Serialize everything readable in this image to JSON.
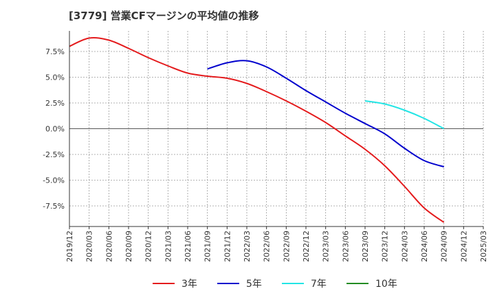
{
  "chart_data": {
    "type": "line",
    "title": "[3779]  営業CFマージンの平均値の推移",
    "xlabel": "",
    "ylabel": "",
    "ylim": [
      -9.5,
      9.5
    ],
    "y_ticks": [
      7.5,
      5.0,
      2.5,
      0.0,
      -2.5,
      -5.0,
      -7.5
    ],
    "y_tick_labels": [
      "7.5%",
      "5.0%",
      "2.5%",
      "0.0%",
      "-2.5%",
      "-5.0%",
      "-7.5%"
    ],
    "x_tick_labels": [
      "2019/12",
      "2020/03",
      "2020/06",
      "2020/09",
      "2020/12",
      "2021/03",
      "2021/06",
      "2021/09",
      "2021/12",
      "2022/03",
      "2022/06",
      "2022/09",
      "2022/12",
      "2023/03",
      "2023/06",
      "2023/09",
      "2023/12",
      "2024/03",
      "2024/06",
      "2024/09",
      "2024/12",
      "2025/03"
    ],
    "grid": true,
    "legend_position": "bottom",
    "series": [
      {
        "name": "3年",
        "color": "#e41a1c",
        "points": [
          [
            "2019/12",
            8.0
          ],
          [
            "2020/03",
            8.8
          ],
          [
            "2020/06",
            8.6
          ],
          [
            "2020/09",
            7.8
          ],
          [
            "2020/12",
            6.9
          ],
          [
            "2021/03",
            6.1
          ],
          [
            "2021/06",
            5.4
          ],
          [
            "2021/09",
            5.1
          ],
          [
            "2021/12",
            4.9
          ],
          [
            "2022/03",
            4.4
          ],
          [
            "2022/06",
            3.6
          ],
          [
            "2022/09",
            2.7
          ],
          [
            "2022/12",
            1.7
          ],
          [
            "2023/03",
            0.6
          ],
          [
            "2023/06",
            -0.7
          ],
          [
            "2023/09",
            -2.0
          ],
          [
            "2023/12",
            -3.6
          ],
          [
            "2024/03",
            -5.6
          ],
          [
            "2024/06",
            -7.7
          ],
          [
            "2024/09",
            -9.1
          ]
        ]
      },
      {
        "name": "5年",
        "color": "#0000cd",
        "points": [
          [
            "2021/09",
            5.8
          ],
          [
            "2021/12",
            6.4
          ],
          [
            "2022/03",
            6.6
          ],
          [
            "2022/06",
            6.0
          ],
          [
            "2022/09",
            4.9
          ],
          [
            "2022/12",
            3.7
          ],
          [
            "2023/03",
            2.6
          ],
          [
            "2023/06",
            1.5
          ],
          [
            "2023/09",
            0.5
          ],
          [
            "2023/12",
            -0.5
          ],
          [
            "2024/03",
            -1.9
          ],
          [
            "2024/06",
            -3.1
          ],
          [
            "2024/09",
            -3.7
          ]
        ]
      },
      {
        "name": "7年",
        "color": "#22e5e5",
        "points": [
          [
            "2023/09",
            2.7
          ],
          [
            "2023/12",
            2.4
          ],
          [
            "2024/03",
            1.8
          ],
          [
            "2024/06",
            1.0
          ],
          [
            "2024/09",
            0.0
          ]
        ]
      },
      {
        "name": "10年",
        "color": "#228b22",
        "points": []
      }
    ]
  }
}
